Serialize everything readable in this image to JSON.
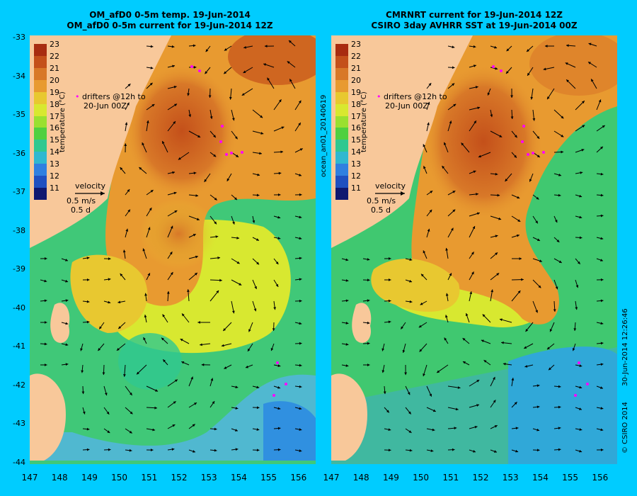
{
  "left_panel": {
    "title_line1": "OM_afD0 0-5m temp. 19-Jun-2014",
    "title_line2": "OM_afD0 0-5m current for 19-Jun-2014 12Z"
  },
  "right_panel": {
    "title_line1": "CMRNRT current for 19-Jun-2014 12Z",
    "title_line2": "CSIRO 3day AVHRR SST at 19-Jun-2014 00Z"
  },
  "colorbar": {
    "label": "temperature (°C)",
    "ticks": [
      "23",
      "22",
      "21",
      "20",
      "19",
      "18",
      "17",
      "16",
      "15",
      "14",
      "13",
      "12",
      "11"
    ],
    "colors": [
      "#a82c10",
      "#c4501a",
      "#d87828",
      "#e89a30",
      "#e8c830",
      "#d8e830",
      "#9ae030",
      "#50d040",
      "#30c890",
      "#30b8d0",
      "#3080e0",
      "#2050c0",
      "#101870"
    ]
  },
  "drifters_note": {
    "line1": "drifters @12h to",
    "line2": "20-Jun 00Z"
  },
  "velocity_key": {
    "label": "velocity",
    "speed": "0.5 m/s",
    "duration": "0.5 d"
  },
  "lat_ticks": [
    "-33",
    "-34",
    "-35",
    "-36",
    "-37",
    "-38",
    "-39",
    "-40",
    "-41",
    "-42",
    "-43",
    "-44"
  ],
  "lon_ticks": [
    "147",
    "148",
    "149",
    "150",
    "151",
    "152",
    "153",
    "154",
    "155",
    "156"
  ],
  "side_labels": {
    "run_id": "ocean_an01_20140619",
    "timestamp": "30-Jun-2014 12:26:46",
    "copyright": "© CSIRO 2014"
  }
}
